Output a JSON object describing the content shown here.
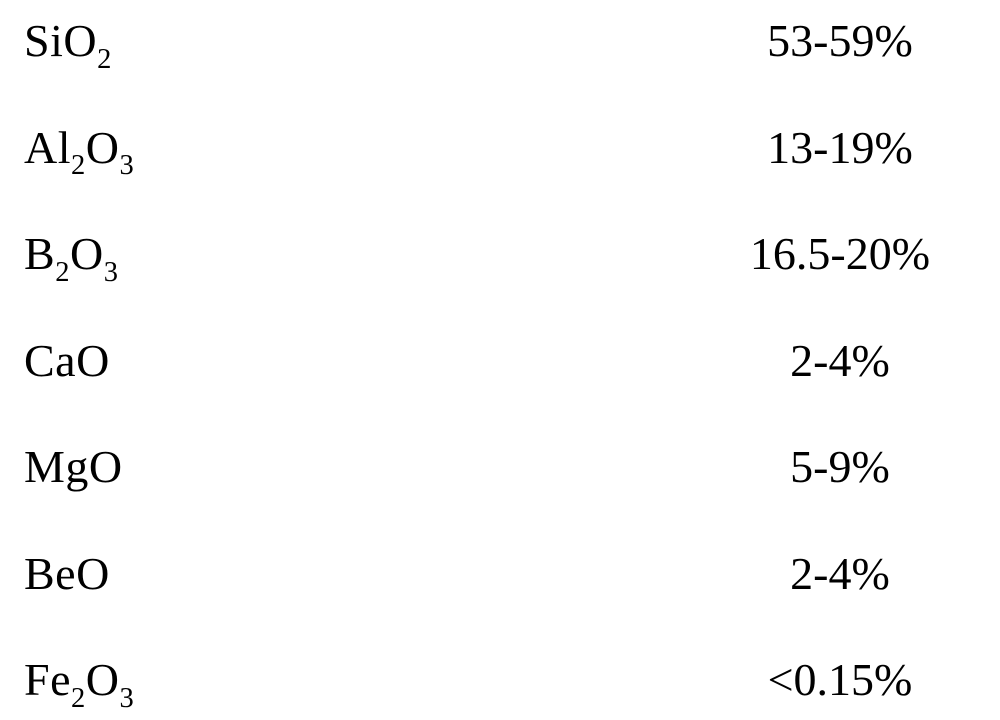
{
  "table": {
    "type": "table",
    "text_color": "#000000",
    "background_color": "#ffffff",
    "font_family": "Times New Roman",
    "font_size_pt": 34,
    "rows": [
      {
        "formula_html": "SiO<sub>2</sub>",
        "value": "53-59%"
      },
      {
        "formula_html": "Al<sub>2</sub>O<sub>3</sub>",
        "value": "13-19%"
      },
      {
        "formula_html": "B<sub>2</sub>O<sub>3</sub>",
        "value": "16.5-20%"
      },
      {
        "formula_html": "CaO",
        "value": "2-4%"
      },
      {
        "formula_html": "MgO",
        "value": "5-9%"
      },
      {
        "formula_html": "BeO",
        "value": "2-4%"
      },
      {
        "formula_html": "Fe<sub>2</sub>O<sub>3</sub>",
        "value": "<0.15%"
      }
    ]
  }
}
